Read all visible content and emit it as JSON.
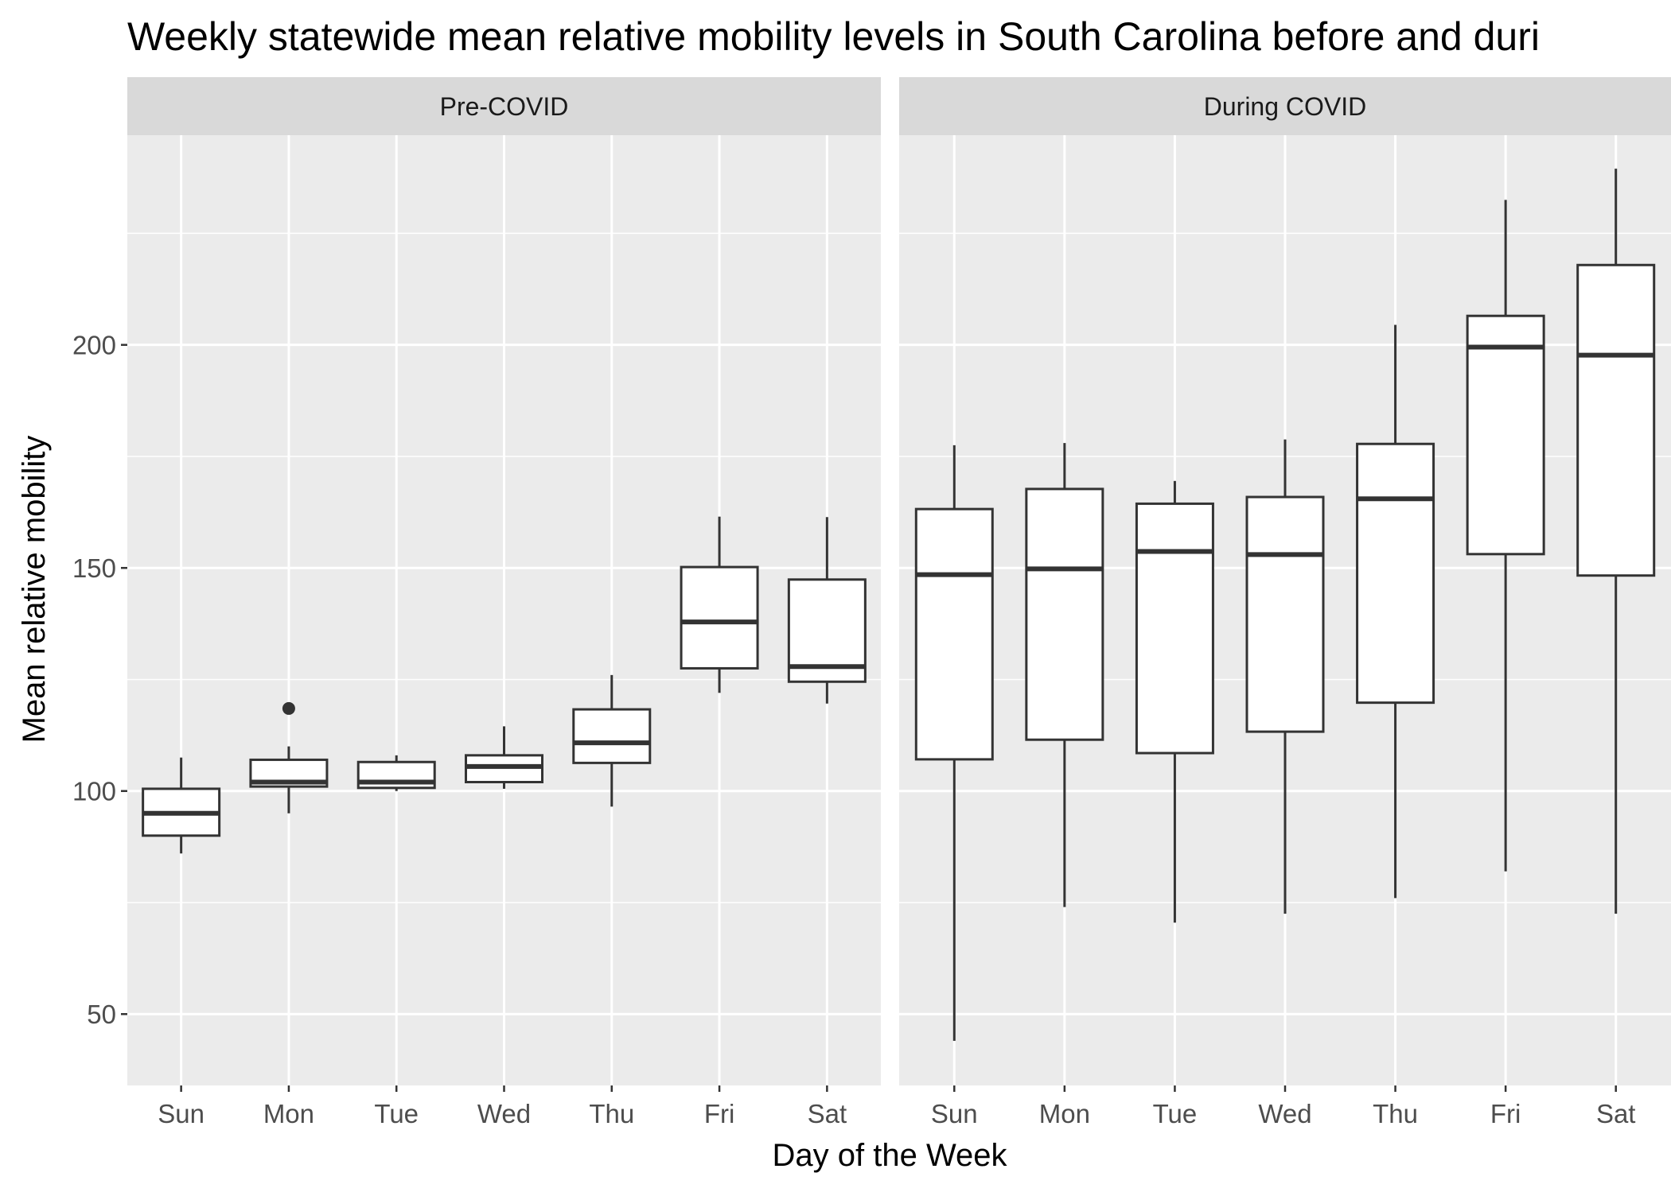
{
  "chart_data": {
    "type": "boxplot",
    "title": "Weekly statewide mean relative mobility levels in South Carolina before and duri",
    "xlabel": "Day of the Week",
    "ylabel": "Mean relative mobility",
    "ylim": [
      34,
      247
    ],
    "y_ticks": [
      50,
      100,
      150,
      200
    ],
    "grid": true,
    "categories": [
      "Sun",
      "Mon",
      "Tue",
      "Wed",
      "Thu",
      "Fri",
      "Sat"
    ],
    "panels": [
      {
        "label": "Pre-COVID",
        "boxes": [
          {
            "day": "Sun",
            "min": 86,
            "q1": 90,
            "median": 95,
            "q3": 100.5,
            "max": 107.5,
            "outliers": []
          },
          {
            "day": "Mon",
            "min": 95,
            "q1": 101,
            "median": 102,
            "q3": 107,
            "max": 110,
            "outliers": [
              118.5
            ]
          },
          {
            "day": "Tue",
            "min": 100,
            "q1": 100.7,
            "median": 102,
            "q3": 106.5,
            "max": 108,
            "outliers": []
          },
          {
            "day": "Wed",
            "min": 100.5,
            "q1": 102,
            "median": 105.5,
            "q3": 108,
            "max": 114.5,
            "outliers": []
          },
          {
            "day": "Thu",
            "min": 96.5,
            "q1": 106.3,
            "median": 110.8,
            "q3": 118.3,
            "max": 126,
            "outliers": []
          },
          {
            "day": "Fri",
            "min": 122,
            "q1": 127.5,
            "median": 137.9,
            "q3": 150.2,
            "max": 161.5,
            "outliers": []
          },
          {
            "day": "Sat",
            "min": 119.6,
            "q1": 124.5,
            "median": 127.9,
            "q3": 147.4,
            "max": 161.4,
            "outliers": []
          }
        ]
      },
      {
        "label": "During COVID",
        "boxes": [
          {
            "day": "Sun",
            "min": 44,
            "q1": 107.1,
            "median": 148.5,
            "q3": 163.2,
            "max": 177.5,
            "outliers": []
          },
          {
            "day": "Mon",
            "min": 74,
            "q1": 111.5,
            "median": 149.8,
            "q3": 167.7,
            "max": 178,
            "outliers": []
          },
          {
            "day": "Tue",
            "min": 70.5,
            "q1": 108.5,
            "median": 153.7,
            "q3": 164.4,
            "max": 169.5,
            "outliers": []
          },
          {
            "day": "Wed",
            "min": 72.5,
            "q1": 113.3,
            "median": 153,
            "q3": 165.9,
            "max": 178.8,
            "outliers": []
          },
          {
            "day": "Thu",
            "min": 76,
            "q1": 119.8,
            "median": 165.5,
            "q3": 177.8,
            "max": 204.5,
            "outliers": []
          },
          {
            "day": "Fri",
            "min": 82,
            "q1": 153.1,
            "median": 199.5,
            "q3": 206.5,
            "max": 232.5,
            "outliers": []
          },
          {
            "day": "Sat",
            "min": 72.5,
            "q1": 148.3,
            "median": 197.7,
            "q3": 217.9,
            "max": 239.5,
            "outliers": []
          }
        ]
      }
    ]
  }
}
